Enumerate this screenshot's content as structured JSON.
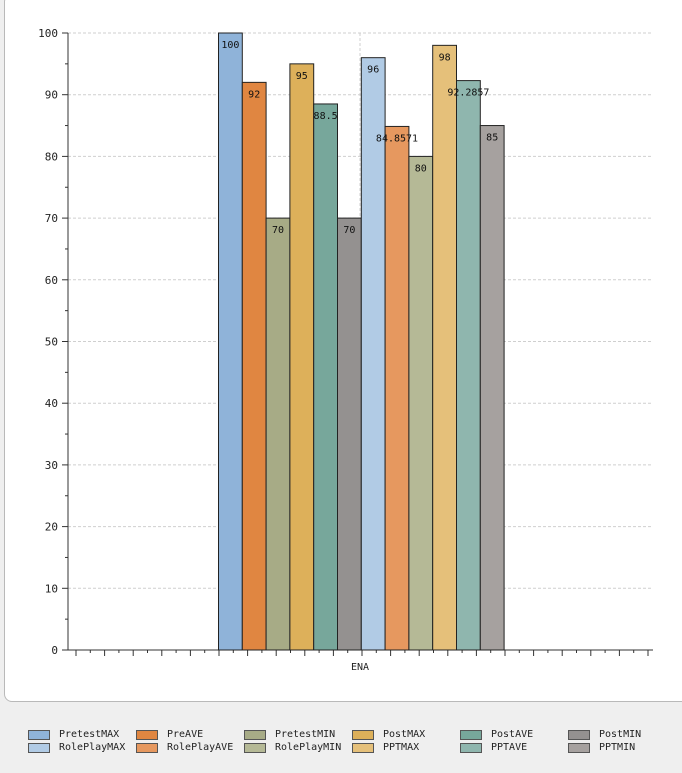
{
  "chart_data": {
    "type": "bar",
    "categories": [
      "ENA"
    ],
    "ylim": [
      0,
      100
    ],
    "yticks": [
      "0",
      "10",
      "20",
      "30",
      "40",
      "50",
      "60",
      "70",
      "80",
      "90",
      "100"
    ],
    "grid": true,
    "legend_position": "bottom",
    "series": [
      {
        "name": "PretestMAX",
        "values": [
          100
        ],
        "label": "100",
        "color": "#8fb3d9"
      },
      {
        "name": "PreAVE",
        "values": [
          92
        ],
        "label": "92",
        "color": "#e08641"
      },
      {
        "name": "PretestMIN",
        "values": [
          70
        ],
        "label": "70",
        "color": "#a7ab86"
      },
      {
        "name": "PostMAX",
        "values": [
          95
        ],
        "label": "95",
        "color": "#ddb05a"
      },
      {
        "name": "PostAVE",
        "values": [
          88.5
        ],
        "label": "88.5",
        "color": "#77a79b"
      },
      {
        "name": "PostMIN",
        "values": [
          70
        ],
        "label": "70",
        "color": "#949190"
      },
      {
        "name": "RolePlayMAX",
        "values": [
          96
        ],
        "label": "96",
        "color": "#b1cbe5"
      },
      {
        "name": "RolePlayAVE",
        "values": [
          84.8571
        ],
        "label": "84.8571",
        "color": "#e6985f"
      },
      {
        "name": "RolePlayMIN",
        "values": [
          80
        ],
        "label": "80",
        "color": "#b5b996"
      },
      {
        "name": "PPTMAX",
        "values": [
          98
        ],
        "label": "98",
        "color": "#e5c07a"
      },
      {
        "name": "PPTAVE",
        "values": [
          92.2857
        ],
        "label": "92.2857",
        "color": "#8fb6ae"
      },
      {
        "name": "PPTMIN",
        "values": [
          85
        ],
        "label": "85",
        "color": "#a6a19f"
      }
    ]
  }
}
